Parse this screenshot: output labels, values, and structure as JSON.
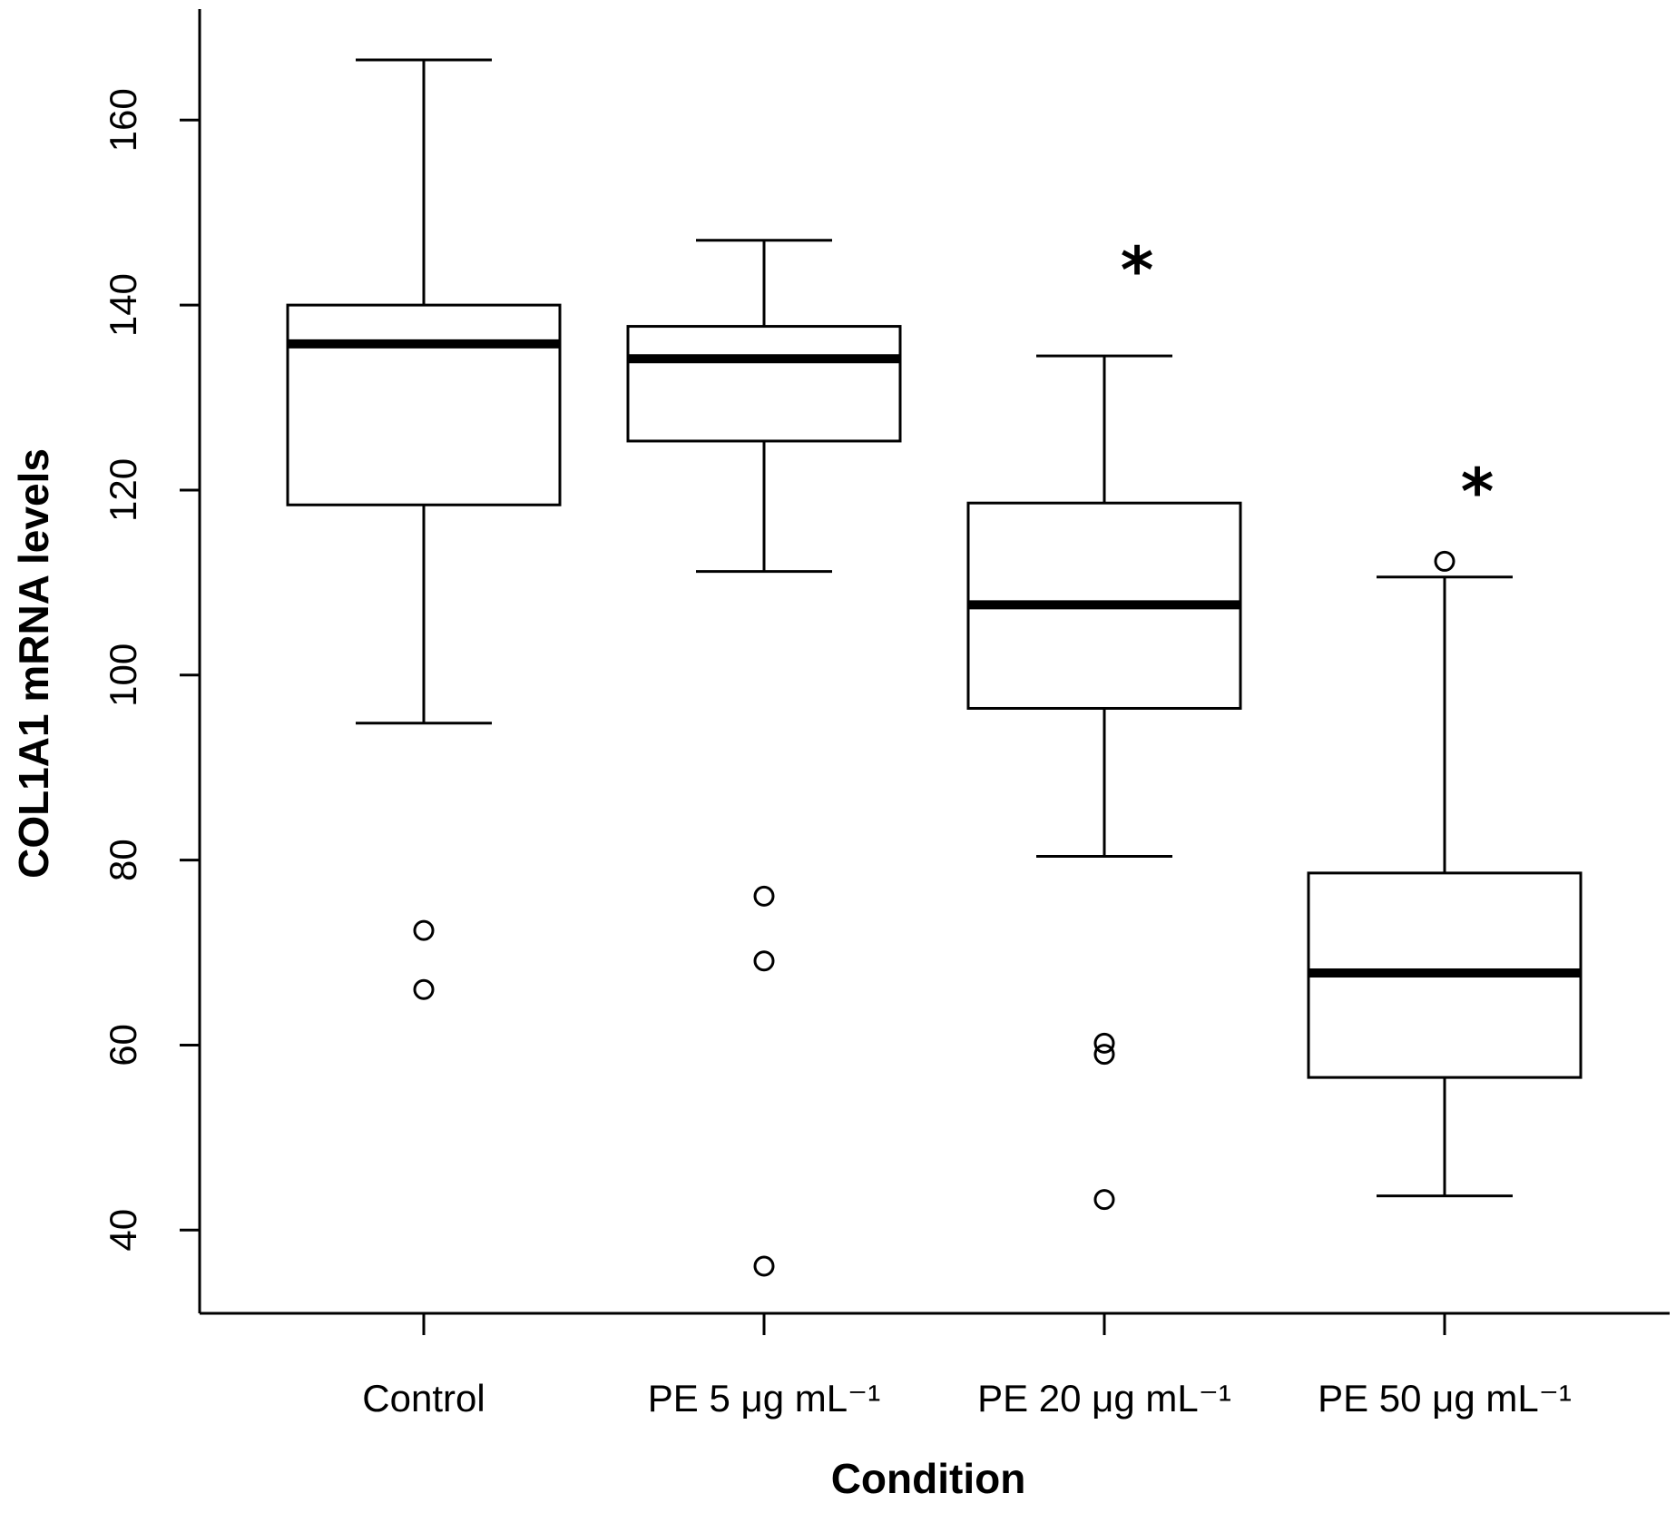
{
  "chart_data": {
    "type": "boxplot",
    "title": "",
    "xlabel": "Condition",
    "ylabel": "COL1A1 mRNA levels",
    "ylim": [
      31,
      172
    ],
    "yticks": [
      40,
      60,
      80,
      100,
      120,
      140,
      160
    ],
    "categories": [
      "Control",
      "PE 5 μg mL⁻¹",
      "PE 20 μg mL⁻¹",
      "PE 50 μg mL⁻¹"
    ],
    "boxes": [
      {
        "name": "Control",
        "whisker_low": 94.8,
        "q1": 118.4,
        "median": 135.8,
        "q3": 140.0,
        "whisker_high": 166.5,
        "outliers": [
          72.4,
          66.0
        ],
        "significance": ""
      },
      {
        "name": "PE 5 μg mL⁻¹",
        "whisker_low": 111.2,
        "q1": 125.3,
        "median": 134.2,
        "q3": 137.7,
        "whisker_high": 147.0,
        "outliers": [
          76.1,
          69.1,
          36.1
        ],
        "significance": ""
      },
      {
        "name": "PE 20 μg mL⁻¹",
        "whisker_low": 80.4,
        "q1": 96.4,
        "median": 107.6,
        "q3": 118.6,
        "whisker_high": 134.5,
        "outliers": [
          60.2,
          59.0,
          43.3
        ],
        "significance": "*"
      },
      {
        "name": "PE 50 μg mL⁻¹",
        "whisker_low": 43.7,
        "q1": 56.5,
        "median": 67.8,
        "q3": 78.6,
        "whisker_high": 110.6,
        "outliers": [
          112.3
        ],
        "significance": "*"
      }
    ]
  }
}
